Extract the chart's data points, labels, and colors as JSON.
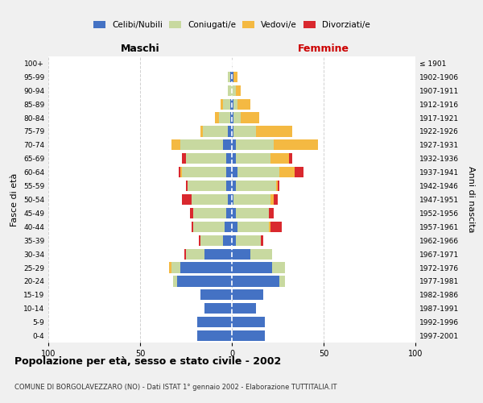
{
  "age_groups": [
    "0-4",
    "5-9",
    "10-14",
    "15-19",
    "20-24",
    "25-29",
    "30-34",
    "35-39",
    "40-44",
    "45-49",
    "50-54",
    "55-59",
    "60-64",
    "65-69",
    "70-74",
    "75-79",
    "80-84",
    "85-89",
    "90-94",
    "95-99",
    "100+"
  ],
  "birth_years": [
    "1997-2001",
    "1992-1996",
    "1987-1991",
    "1982-1986",
    "1977-1981",
    "1972-1976",
    "1967-1971",
    "1962-1966",
    "1957-1961",
    "1952-1956",
    "1947-1951",
    "1942-1946",
    "1937-1941",
    "1932-1936",
    "1927-1931",
    "1922-1926",
    "1917-1921",
    "1912-1916",
    "1907-1911",
    "1902-1906",
    "≤ 1901"
  ],
  "maschi": {
    "celibi": [
      19,
      19,
      15,
      17,
      30,
      28,
      15,
      5,
      4,
      3,
      2,
      3,
      3,
      3,
      5,
      2,
      1,
      1,
      0,
      1,
      0
    ],
    "coniugati": [
      0,
      0,
      0,
      0,
      2,
      5,
      10,
      12,
      17,
      18,
      20,
      21,
      24,
      22,
      23,
      14,
      6,
      4,
      2,
      1,
      0
    ],
    "vedovi": [
      0,
      0,
      0,
      0,
      0,
      1,
      0,
      0,
      0,
      0,
      0,
      0,
      1,
      0,
      5,
      1,
      2,
      1,
      0,
      0,
      0
    ],
    "divorziati": [
      0,
      0,
      0,
      0,
      0,
      0,
      1,
      1,
      1,
      2,
      5,
      1,
      1,
      2,
      0,
      0,
      0,
      0,
      0,
      0,
      0
    ]
  },
  "femmine": {
    "nubili": [
      18,
      18,
      13,
      17,
      26,
      22,
      10,
      2,
      3,
      2,
      1,
      2,
      3,
      2,
      2,
      1,
      1,
      1,
      0,
      1,
      0
    ],
    "coniugate": [
      0,
      0,
      0,
      0,
      3,
      7,
      12,
      14,
      17,
      18,
      20,
      22,
      23,
      19,
      21,
      12,
      4,
      2,
      2,
      0,
      0
    ],
    "vedove": [
      0,
      0,
      0,
      0,
      0,
      0,
      0,
      0,
      1,
      0,
      2,
      1,
      8,
      10,
      24,
      20,
      10,
      7,
      3,
      2,
      0
    ],
    "divorziate": [
      0,
      0,
      0,
      0,
      0,
      0,
      0,
      1,
      6,
      3,
      2,
      1,
      5,
      2,
      0,
      0,
      0,
      0,
      0,
      0,
      0
    ]
  },
  "colors": {
    "celibi": "#4472C4",
    "coniugati": "#c8d9a0",
    "vedovi": "#f4b942",
    "divorziati": "#d9282e"
  },
  "xlim": 100,
  "title": "Popolazione per età, sesso e stato civile - 2002",
  "subtitle": "COMUNE DI BORGOLAVEZZARO (NO) - Dati ISTAT 1° gennaio 2002 - Elaborazione TUTTITALIA.IT",
  "xlabel_left": "Maschi",
  "xlabel_right": "Femmine",
  "ylabel_left": "Fasce di età",
  "ylabel_right": "Anni di nascita",
  "bg_color": "#f0f0f0",
  "plot_bg_color": "#ffffff",
  "grid_color": "#cccccc"
}
